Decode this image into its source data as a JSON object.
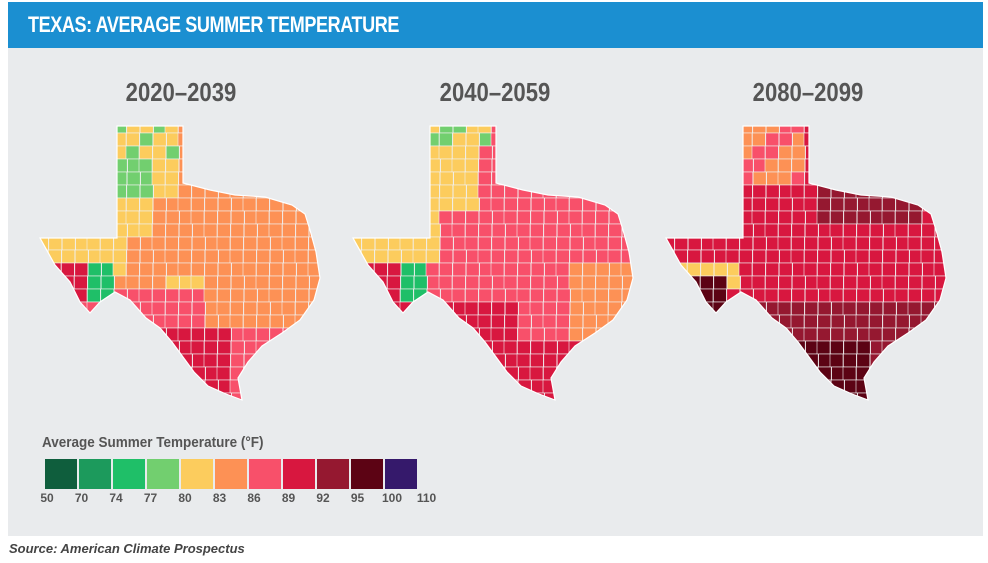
{
  "header": {
    "title": "TEXAS: AVERAGE SUMMER TEMPERATURE",
    "color": "#1b8fd1"
  },
  "periods": [
    "2020–2039",
    "2040–2059",
    "2080–2099"
  ],
  "legend": {
    "title": "Average Summer Temperature (°F)",
    "ticks": [
      "50",
      "70",
      "74",
      "77",
      "80",
      "83",
      "86",
      "89",
      "92",
      "95",
      "100",
      "110"
    ],
    "colors": [
      "#0f5e3d",
      "#1c9a5c",
      "#1fbf68",
      "#72cf6f",
      "#fccc5d",
      "#fd9155",
      "#f8506a",
      "#d8173f",
      "#951830",
      "#5c0314",
      "#35196b"
    ]
  },
  "map_style": {
    "lines": "#f0f0f0",
    "background": "#e9ebed"
  },
  "source": "Source: American Climate Prospectus"
}
